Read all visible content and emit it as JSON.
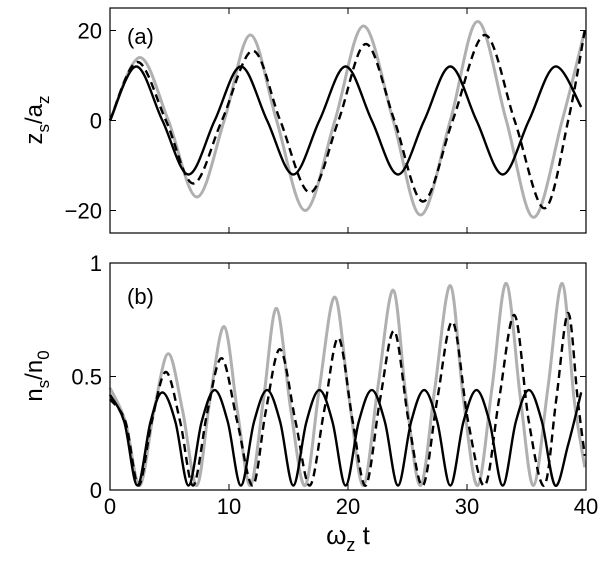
{
  "chart_data": [
    {
      "type": "line",
      "panel_label": "(a)",
      "ylabel": {
        "main": "z",
        "sub1": "s",
        "sep": "/a",
        "sub2": "z"
      },
      "xlim": [
        0,
        40
      ],
      "ylim": [
        -25,
        25
      ],
      "yticks": [
        -20,
        0,
        20
      ],
      "ytick_labels": [
        "−20",
        "0",
        "20"
      ],
      "xticks": [
        0,
        10,
        20,
        30,
        40
      ],
      "series": [
        {
          "style": "solid",
          "color": "#000000",
          "values": [
            [
              0,
              0
            ],
            [
              2.2,
              12
            ],
            [
              4.4,
              0
            ],
            [
              6.6,
              -12
            ],
            [
              8.8,
              0
            ],
            [
              11,
              12
            ],
            [
              13.2,
              0
            ],
            [
              15.4,
              -12
            ],
            [
              17.6,
              0
            ],
            [
              19.8,
              12
            ],
            [
              22,
              0
            ],
            [
              24.2,
              -12
            ],
            [
              26.4,
              0
            ],
            [
              28.6,
              12
            ],
            [
              30.8,
              0
            ],
            [
              33,
              -12
            ],
            [
              35.2,
              0
            ],
            [
              37.4,
              12
            ],
            [
              39.6,
              3
            ]
          ]
        },
        {
          "style": "dashed",
          "color": "#000000",
          "values": [
            [
              0,
              0
            ],
            [
              2.3,
              13
            ],
            [
              4.7,
              0
            ],
            [
              7,
              -14
            ],
            [
              9.4,
              0
            ],
            [
              12,
              15.5
            ],
            [
              14.3,
              0
            ],
            [
              16.8,
              -16
            ],
            [
              19.2,
              0
            ],
            [
              21.5,
              17
            ],
            [
              23.9,
              0
            ],
            [
              26.3,
              -18
            ],
            [
              28.8,
              0
            ],
            [
              31.5,
              19
            ],
            [
              34,
              0
            ],
            [
              36.5,
              -19.5
            ],
            [
              38.5,
              0
            ],
            [
              39.9,
              20
            ]
          ]
        },
        {
          "style": "solid",
          "color": "#b0b0b0",
          "values": [
            [
              0,
              0
            ],
            [
              2.5,
              14
            ],
            [
              4.9,
              0
            ],
            [
              7.3,
              -17
            ],
            [
              9.6,
              0
            ],
            [
              11.8,
              19
            ],
            [
              14,
              0
            ],
            [
              16.4,
              -20
            ],
            [
              18.9,
              0
            ],
            [
              21.3,
              21
            ],
            [
              23.8,
              0
            ],
            [
              26.1,
              -21
            ],
            [
              28.6,
              0
            ],
            [
              30.9,
              22
            ],
            [
              33.3,
              0
            ],
            [
              35.6,
              -21.5
            ],
            [
              38,
              0
            ],
            [
              39.9,
              20
            ]
          ]
        }
      ]
    },
    {
      "type": "line",
      "panel_label": "(b)",
      "ylabel": {
        "main": "n",
        "sub1": "s",
        "sep": "/n",
        "sub2": "0"
      },
      "xlabel": {
        "main": "ω",
        "sub": "z",
        "tail": " t"
      },
      "xlim": [
        0,
        40
      ],
      "ylim": [
        0,
        1
      ],
      "yticks": [
        0,
        0.5,
        1
      ],
      "ytick_labels": [
        "0",
        "0.5",
        "1"
      ],
      "xticks": [
        0,
        10,
        20,
        30,
        40
      ],
      "xtick_labels": [
        "0",
        "10",
        "20",
        "30",
        "40"
      ],
      "series": [
        {
          "style": "solid",
          "color": "#000000",
          "values": [
            [
              0,
              0.42
            ],
            [
              1.2,
              0.3
            ],
            [
              2.3,
              0.02
            ],
            [
              3.4,
              0.3
            ],
            [
              4.4,
              0.43
            ],
            [
              5.5,
              0.3
            ],
            [
              6.6,
              0.02
            ],
            [
              7.7,
              0.3
            ],
            [
              8.8,
              0.44
            ],
            [
              9.9,
              0.3
            ],
            [
              11,
              0.02
            ],
            [
              12.1,
              0.3
            ],
            [
              13.2,
              0.44
            ],
            [
              14.3,
              0.3
            ],
            [
              15.4,
              0.02
            ],
            [
              16.5,
              0.3
            ],
            [
              17.6,
              0.44
            ],
            [
              18.7,
              0.3
            ],
            [
              19.8,
              0.02
            ],
            [
              20.9,
              0.3
            ],
            [
              22,
              0.44
            ],
            [
              23.1,
              0.3
            ],
            [
              24.2,
              0.02
            ],
            [
              25.3,
              0.3
            ],
            [
              26.4,
              0.44
            ],
            [
              27.5,
              0.3
            ],
            [
              28.6,
              0.02
            ],
            [
              29.7,
              0.3
            ],
            [
              30.8,
              0.44
            ],
            [
              31.9,
              0.3
            ],
            [
              33,
              0.02
            ],
            [
              34.1,
              0.3
            ],
            [
              35.2,
              0.44
            ],
            [
              36.3,
              0.3
            ],
            [
              37.4,
              0.02
            ],
            [
              38.5,
              0.2
            ],
            [
              39.6,
              0.43
            ]
          ]
        },
        {
          "style": "dashed",
          "color": "#000000",
          "values": [
            [
              0,
              0.4
            ],
            [
              1.3,
              0.3
            ],
            [
              2.4,
              0.02
            ],
            [
              3.5,
              0.3
            ],
            [
              4.7,
              0.52
            ],
            [
              5.9,
              0.3
            ],
            [
              7,
              0.02
            ],
            [
              8.2,
              0.35
            ],
            [
              9.4,
              0.58
            ],
            [
              10.7,
              0.3
            ],
            [
              12,
              0.02
            ],
            [
              13.1,
              0.35
            ],
            [
              14.3,
              0.62
            ],
            [
              15.6,
              0.3
            ],
            [
              16.8,
              0.02
            ],
            [
              18,
              0.35
            ],
            [
              19.2,
              0.67
            ],
            [
              20.4,
              0.3
            ],
            [
              21.5,
              0.02
            ],
            [
              22.7,
              0.4
            ],
            [
              23.9,
              0.7
            ],
            [
              25.1,
              0.3
            ],
            [
              26.3,
              0.02
            ],
            [
              27.5,
              0.4
            ],
            [
              28.8,
              0.74
            ],
            [
              30.1,
              0.3
            ],
            [
              31.5,
              0.02
            ],
            [
              32.7,
              0.4
            ],
            [
              34,
              0.77
            ],
            [
              35.2,
              0.3
            ],
            [
              36.5,
              0.02
            ],
            [
              37.5,
              0.4
            ],
            [
              38.5,
              0.78
            ],
            [
              39.3,
              0.4
            ],
            [
              39.9,
              0.15
            ]
          ]
        },
        {
          "style": "solid",
          "color": "#b0b0b0",
          "values": [
            [
              0,
              0.45
            ],
            [
              1.3,
              0.3
            ],
            [
              2.5,
              0.02
            ],
            [
              3.7,
              0.35
            ],
            [
              4.9,
              0.6
            ],
            [
              6.1,
              0.35
            ],
            [
              7.3,
              0.02
            ],
            [
              8.4,
              0.4
            ],
            [
              9.6,
              0.72
            ],
            [
              10.7,
              0.35
            ],
            [
              11.8,
              0.02
            ],
            [
              12.9,
              0.4
            ],
            [
              14,
              0.8
            ],
            [
              15.2,
              0.35
            ],
            [
              16.4,
              0.02
            ],
            [
              17.6,
              0.45
            ],
            [
              18.9,
              0.85
            ],
            [
              20.1,
              0.4
            ],
            [
              21.3,
              0.02
            ],
            [
              22.5,
              0.45
            ],
            [
              23.8,
              0.88
            ],
            [
              24.9,
              0.4
            ],
            [
              26.1,
              0.02
            ],
            [
              27.3,
              0.45
            ],
            [
              28.6,
              0.9
            ],
            [
              29.7,
              0.4
            ],
            [
              30.9,
              0.02
            ],
            [
              32.1,
              0.45
            ],
            [
              33.3,
              0.91
            ],
            [
              34.5,
              0.4
            ],
            [
              35.6,
              0.02
            ],
            [
              36.8,
              0.45
            ],
            [
              38,
              0.91
            ],
            [
              39,
              0.4
            ],
            [
              39.9,
              0.1
            ]
          ]
        }
      ]
    }
  ]
}
